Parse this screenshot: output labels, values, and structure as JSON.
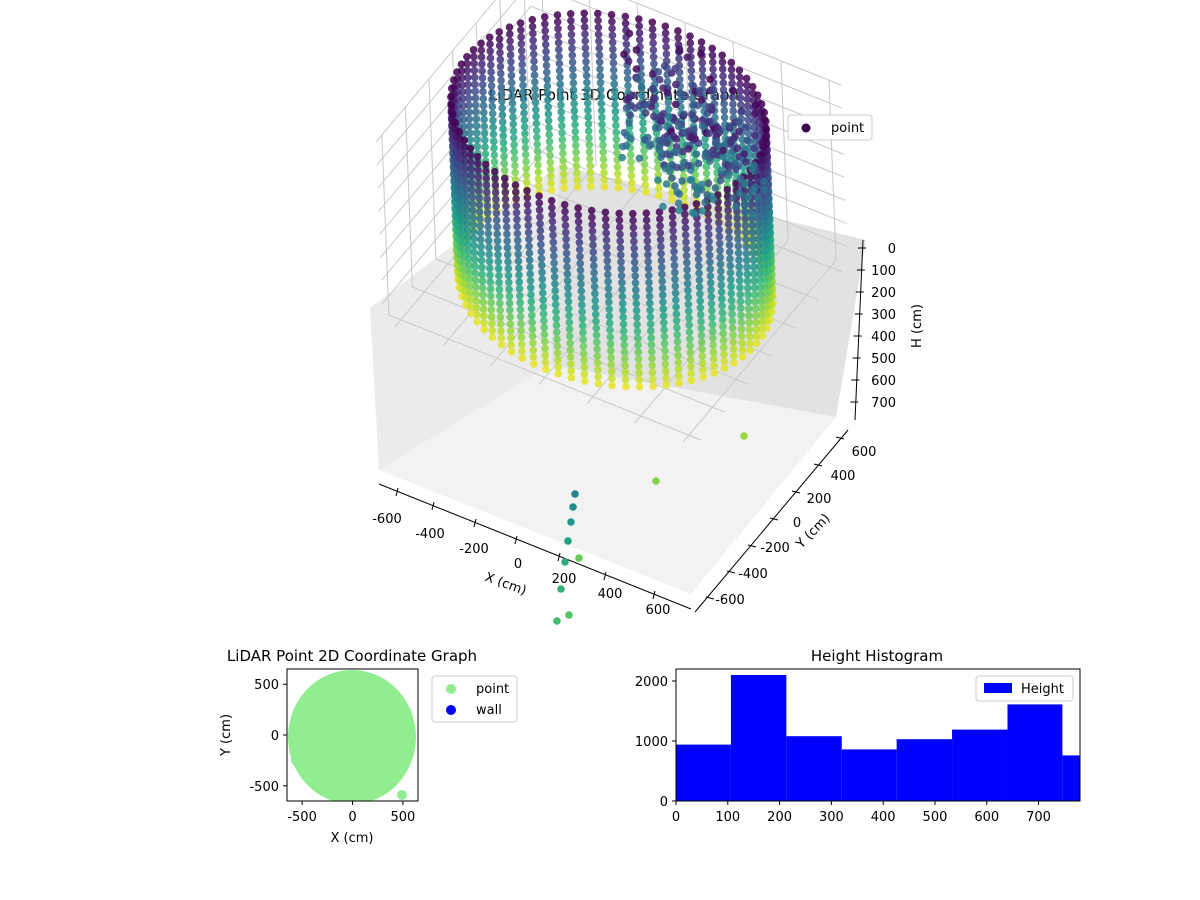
{
  "chart_data": [
    {
      "type": "scatter",
      "projection": "3d",
      "title": "LiDAR Point 3D Coordinate Graph",
      "xlabel": "X (cm)",
      "ylabel": "Y (cm)",
      "zlabel": "H (cm)",
      "x_ticks": [
        "-600",
        "-400",
        "-200",
        "0",
        "200",
        "400",
        "600"
      ],
      "y_ticks": [
        "600",
        "400",
        "200",
        "0",
        "-200",
        "-400",
        "-600"
      ],
      "z_ticks": [
        "0",
        "100",
        "200",
        "300",
        "400",
        "500",
        "600",
        "700"
      ],
      "xlim": [
        -650,
        650
      ],
      "ylim": [
        -650,
        650
      ],
      "zlim": [
        780,
        0
      ],
      "z_inverted": true,
      "colormap": "viridis",
      "legend": [
        {
          "label": "point",
          "color": "#440154"
        }
      ],
      "legend_position": "top-right",
      "grid": true,
      "description_series": [
        {
          "name": "point",
          "shape": "ring of vertical scan columns, radius ~600 cm, heights 0-780 cm"
        }
      ]
    },
    {
      "type": "scatter",
      "title": "LiDAR Point 2D Coordinate Graph",
      "xlabel": "X (cm)",
      "ylabel": "Y (cm)",
      "x_ticks": [
        "-500",
        "0",
        "500"
      ],
      "y_ticks": [
        "500",
        "0",
        "-500"
      ],
      "xlim": [
        -650,
        650
      ],
      "ylim": [
        -650,
        650
      ],
      "series": [
        {
          "name": "point",
          "color": "#90ee90",
          "shape": "filled disc radius ~640 cm centered near (-20, -20)"
        },
        {
          "name": "wall",
          "color": "#0000ff",
          "values": []
        }
      ],
      "legend_position": "outside-right"
    },
    {
      "type": "bar",
      "subtype": "histogram",
      "title": "Height Histogram",
      "x_ticks": [
        "0",
        "100",
        "200",
        "300",
        "400",
        "500",
        "600",
        "700"
      ],
      "y_ticks": [
        "0",
        "1000",
        "2000"
      ],
      "xlim": [
        0,
        780
      ],
      "ylim": [
        0,
        2200
      ],
      "bin_edges": [
        0,
        106,
        213,
        320,
        426,
        533,
        640,
        746,
        780
      ],
      "values": [
        940,
        2100,
        1080,
        860,
        1030,
        1190,
        1610,
        760
      ],
      "series": [
        {
          "name": "Height",
          "color": "#0000ff"
        }
      ],
      "legend_position": "top-right"
    }
  ]
}
